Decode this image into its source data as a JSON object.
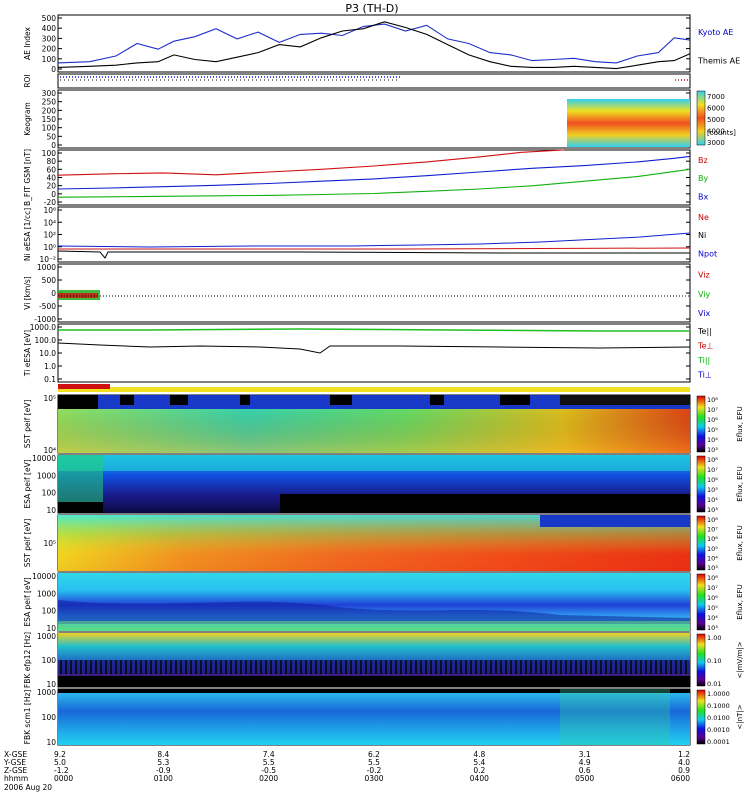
{
  "title": "P3 (TH-D)",
  "chart_data": {
    "type": "line",
    "x_ticks": [
      "0000",
      "0100",
      "0200",
      "0300",
      "0400",
      "0500",
      "0600"
    ],
    "panels": [
      {
        "id": "ae",
        "ylabel": "AE Index",
        "ylim": [
          0,
          500
        ],
        "ticks": [
          "0",
          "100",
          "200",
          "300",
          "400",
          "500"
        ],
        "legend": [
          {
            "name": "Kyoto AE",
            "color": "#0000c8"
          },
          {
            "name": "Themis AE",
            "color": "#000000"
          }
        ],
        "series": [
          {
            "name": "Kyoto AE",
            "color": "#1f2fc8",
            "x": [
              0,
              0.3,
              0.55,
              0.75,
              0.95,
              1.1,
              1.3,
              1.5,
              1.7,
              1.9,
              2.1,
              2.3,
              2.5,
              2.7,
              2.9,
              3.1,
              3.3,
              3.5,
              3.7,
              3.9,
              4.1,
              4.3,
              4.5,
              4.7,
              4.9,
              5.1,
              5.3,
              5.5,
              5.7,
              5.85,
              6.0
            ],
            "y": [
              80,
              90,
              140,
              250,
              200,
              270,
              310,
              380,
              290,
              350,
              260,
              330,
              340,
              320,
              400,
              420,
              360,
              410,
              290,
              250,
              170,
              150,
              100,
              110,
              120,
              90,
              80,
              140,
              170,
              300,
              280
            ]
          },
          {
            "name": "Themis AE",
            "color": "#000000",
            "x": [
              0,
              0.3,
              0.55,
              0.75,
              0.95,
              1.1,
              1.3,
              1.5,
              1.7,
              1.9,
              2.1,
              2.3,
              2.5,
              2.7,
              2.9,
              3.1,
              3.3,
              3.5,
              3.7,
              3.9,
              4.1,
              4.3,
              4.5,
              4.7,
              4.9,
              5.1,
              5.3,
              5.5,
              5.7,
              5.85,
              6.0
            ],
            "y": [
              40,
              50,
              60,
              80,
              90,
              150,
              110,
              90,
              130,
              170,
              240,
              220,
              300,
              360,
              380,
              440,
              390,
              330,
              240,
              150,
              90,
              50,
              40,
              40,
              50,
              40,
              30,
              60,
              90,
              100,
              160
            ]
          }
        ]
      },
      {
        "id": "roi",
        "ylabel": "ROI"
      },
      {
        "id": "keogram",
        "ylabel": "Keogram",
        "ylim": [
          0,
          300
        ],
        "ticks": [
          "0",
          "50",
          "100",
          "150",
          "200",
          "250",
          "300"
        ],
        "colorbar": {
          "label": "[counts]",
          "ticks": [
            "3000",
            "4000",
            "5000",
            "6000",
            "7000"
          ]
        }
      },
      {
        "id": "bgsm",
        "ylabel": "B_FIT GSM [nT]",
        "ylim": [
          -20,
          100
        ],
        "ticks": [
          "-20",
          "0",
          "20",
          "40",
          "60",
          "80",
          "100"
        ],
        "legend": [
          {
            "name": "Bz",
            "color": "#c80000"
          },
          {
            "name": "By",
            "color": "#00b400"
          },
          {
            "name": "Bx",
            "color": "#0000c8"
          }
        ],
        "series": [
          {
            "name": "Bz",
            "color": "#d01010",
            "x": [
              0,
              0.5,
              1.0,
              1.5,
              2.0,
              2.5,
              3.0,
              3.5,
              4.0,
              4.4,
              4.8
            ],
            "y": [
              45,
              48,
              50,
              46,
              52,
              58,
              65,
              74,
              85,
              95,
              102
            ]
          },
          {
            "name": "By",
            "color": "#10b010",
            "x": [
              0,
              0.5,
              1.0,
              1.5,
              2.0,
              2.5,
              3.0,
              3.5,
              4.0,
              4.5,
              5.0,
              5.5,
              6.0
            ],
            "y": [
              -3,
              -2,
              -1,
              0,
              1,
              3,
              5,
              10,
              15,
              22,
              32,
              42,
              58
            ]
          },
          {
            "name": "Bx",
            "color": "#1020d0",
            "x": [
              0,
              0.5,
              1.0,
              1.5,
              2.0,
              2.5,
              3.0,
              3.5,
              4.0,
              4.5,
              5.0,
              5.5,
              5.85,
              6.0
            ],
            "y": [
              15,
              17,
              20,
              23,
              27,
              32,
              37,
              44,
              52,
              60,
              66,
              74,
              82,
              86
            ]
          }
        ]
      },
      {
        "id": "density",
        "ylabel": "Ni eESA [1/cc]",
        "scale": "log",
        "ylim": [
          0.001,
          1000000
        ],
        "ticks": [
          "10⁻²",
          "10⁰",
          "10²",
          "10⁴",
          "10⁶"
        ],
        "legend": [
          {
            "name": "Ne",
            "color": "#c80000"
          },
          {
            "name": "Ni",
            "color": "#000000"
          },
          {
            "name": "Npot",
            "color": "#0000c8"
          }
        ]
      },
      {
        "id": "vi",
        "ylabel": "Vi [km/s]",
        "ylim": [
          -1000,
          1000
        ],
        "ticks": [
          "-1000",
          "-500",
          "0",
          "500",
          "1000"
        ],
        "legend": [
          {
            "name": "Viz",
            "color": "#c80000"
          },
          {
            "name": "Viy",
            "color": "#00b400"
          },
          {
            "name": "Vix",
            "color": "#0000c8"
          }
        ]
      },
      {
        "id": "ti",
        "ylabel": "Ti eESA [eV]",
        "scale": "log",
        "ylim": [
          0.05,
          5000
        ],
        "ticks": [
          "0.1",
          "1.0",
          "10.0",
          "100.0",
          "1000.0"
        ],
        "legend": [
          {
            "name": "Te||",
            "color": "#000000"
          },
          {
            "name": "Te⊥",
            "color": "#c80000"
          },
          {
            "name": "Ti||",
            "color": "#00b400"
          },
          {
            "name": "Ti⊥",
            "color": "#0000c8"
          }
        ]
      },
      {
        "id": "sst_e",
        "ylabel": "SST peif [eV]",
        "ticks": [
          "10⁴",
          "10⁵"
        ]
      },
      {
        "id": "esa_e",
        "ylabel": "ESA peif [eV]",
        "ticks": [
          "10",
          "100",
          "1000",
          "10000"
        ]
      },
      {
        "id": "sst_i",
        "ylabel": "SST peif [eV]",
        "ticks": [
          "10⁵"
        ]
      },
      {
        "id": "esa_i",
        "ylabel": "ESA peif [eV]",
        "ticks": [
          "10",
          "100",
          "1000",
          "10000"
        ]
      },
      {
        "id": "fbk_e",
        "ylabel": "FBK efp12 [Hz]",
        "ticks": [
          "10",
          "100",
          "1000"
        ]
      },
      {
        "id": "fbk_b",
        "ylabel": "FBK scm1 [Hz]",
        "ticks": [
          "10",
          "100",
          "1000"
        ]
      }
    ],
    "colorbars": {
      "eflux_ticks": [
        "10³",
        "10⁴",
        "10⁵",
        "10⁶",
        "10⁷",
        "10⁸"
      ],
      "eflux_label": "Eflux, EFU",
      "fbk_e_ticks": [
        "0.01",
        "0.10",
        "1.00"
      ],
      "fbk_e_label": "<|mV/m|>",
      "fbk_b_ticks": [
        "0.0001",
        "0.0010",
        "0.0100",
        "0.1000",
        "1.0000"
      ],
      "fbk_b_label": "<|nT|>"
    },
    "ephemeris": {
      "row_labels": [
        "X-GSE",
        "Y-GSE",
        "Z-GSE",
        "hhmm"
      ],
      "date": "2006 Aug 20",
      "columns": [
        {
          "x": "9.2",
          "y": "5.0",
          "z": "-1.2",
          "t": "0000"
        },
        {
          "x": "8.4",
          "y": "5.3",
          "z": "-0.9",
          "t": "0100"
        },
        {
          "x": "7.4",
          "y": "5.5",
          "z": "-0.5",
          "t": "0200"
        },
        {
          "x": "6.2",
          "y": "5.5",
          "z": "-0.2",
          "t": "0300"
        },
        {
          "x": "4.8",
          "y": "5.4",
          "z": "0.2",
          "t": "0400"
        },
        {
          "x": "3.1",
          "y": "4.9",
          "z": "0.6",
          "t": "0500"
        },
        {
          "x": "1.2",
          "y": "4.0",
          "z": "0.9",
          "t": "0600"
        }
      ]
    }
  }
}
